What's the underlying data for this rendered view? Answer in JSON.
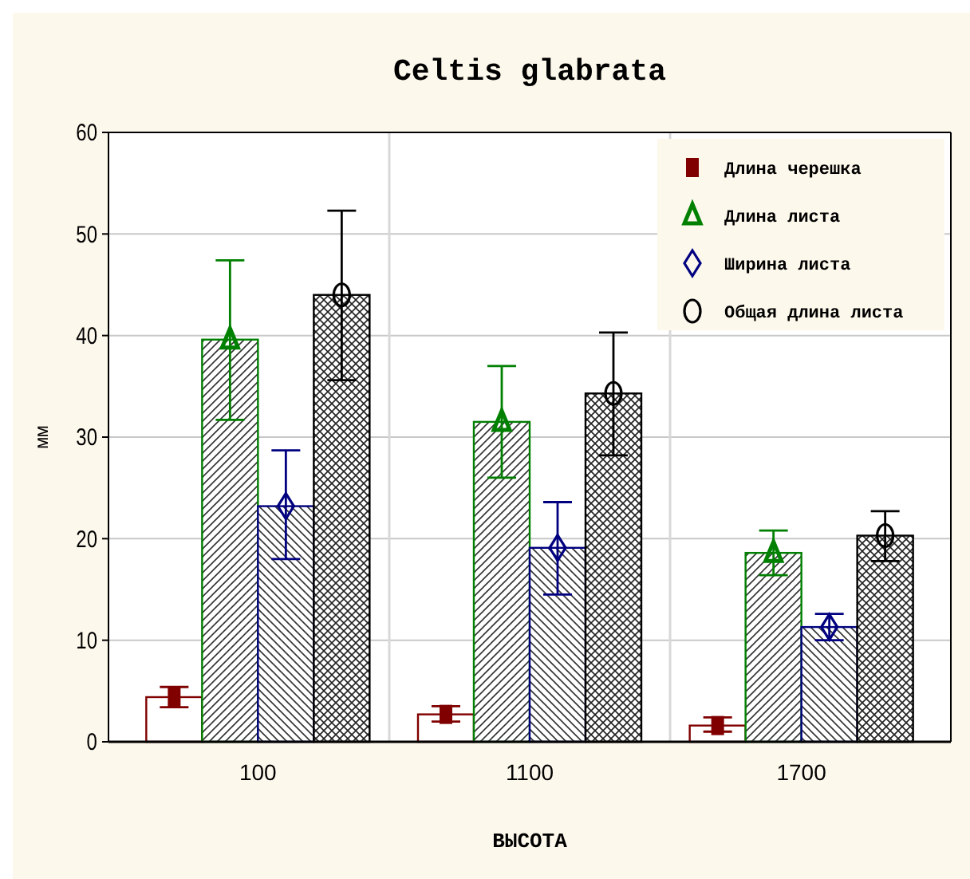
{
  "chart_data": {
    "type": "bar",
    "title": "Celtis glabrata",
    "xlabel": "ВЫСОТА",
    "ylabel": "мм",
    "categories": [
      "100",
      "1100",
      "1700"
    ],
    "series": [
      {
        "color": "#800000",
        "values": [
          4.4,
          2.7,
          1.6
        ]
      },
      {
        "color": "#008000",
        "values": [
          39.6,
          31.5,
          18.6
        ]
      },
      {
        "color": "#000080",
        "values": [
          23.2,
          19.1,
          11.3
        ]
      },
      {
        "color": "#000000",
        "values": [
          44.0,
          34.3,
          20.3
        ]
      },
      {
        "type": "scatter",
        "name": "Длина черешка",
        "color": "#800000",
        "marker": "square",
        "values": [
          4.4,
          2.7,
          1.6
        ],
        "errors": [
          [
            3.4,
            5.4
          ],
          [
            2.0,
            3.5
          ],
          [
            1.0,
            2.4
          ]
        ]
      },
      {
        "type": "scatter",
        "name": "Длина листа",
        "color": "#008000",
        "marker": "triangle",
        "values": [
          39.6,
          31.5,
          18.6
        ],
        "errors": [
          [
            31.7,
            47.4
          ],
          [
            26.0,
            37.0
          ],
          [
            16.4,
            20.8
          ]
        ]
      },
      {
        "type": "scatter",
        "name": "Ширина листа",
        "color": "#000080",
        "marker": "diamond",
        "values": [
          23.2,
          19.1,
          11.3
        ],
        "errors": [
          [
            18.0,
            28.7
          ],
          [
            14.5,
            23.6
          ],
          [
            10.0,
            12.6
          ]
        ]
      },
      {
        "type": "scatter",
        "name": "Общая длина листа",
        "color": "#000000",
        "marker": "circle",
        "values": [
          44.0,
          34.3,
          20.3
        ],
        "errors": [
          [
            35.6,
            52.3
          ],
          [
            28.2,
            40.3
          ],
          [
            17.8,
            22.7
          ]
        ]
      }
    ],
    "ylim": [
      0,
      60
    ],
    "yticks": [
      0,
      10,
      20,
      30,
      40,
      50,
      60
    ],
    "grid": true,
    "legend": "top right"
  }
}
